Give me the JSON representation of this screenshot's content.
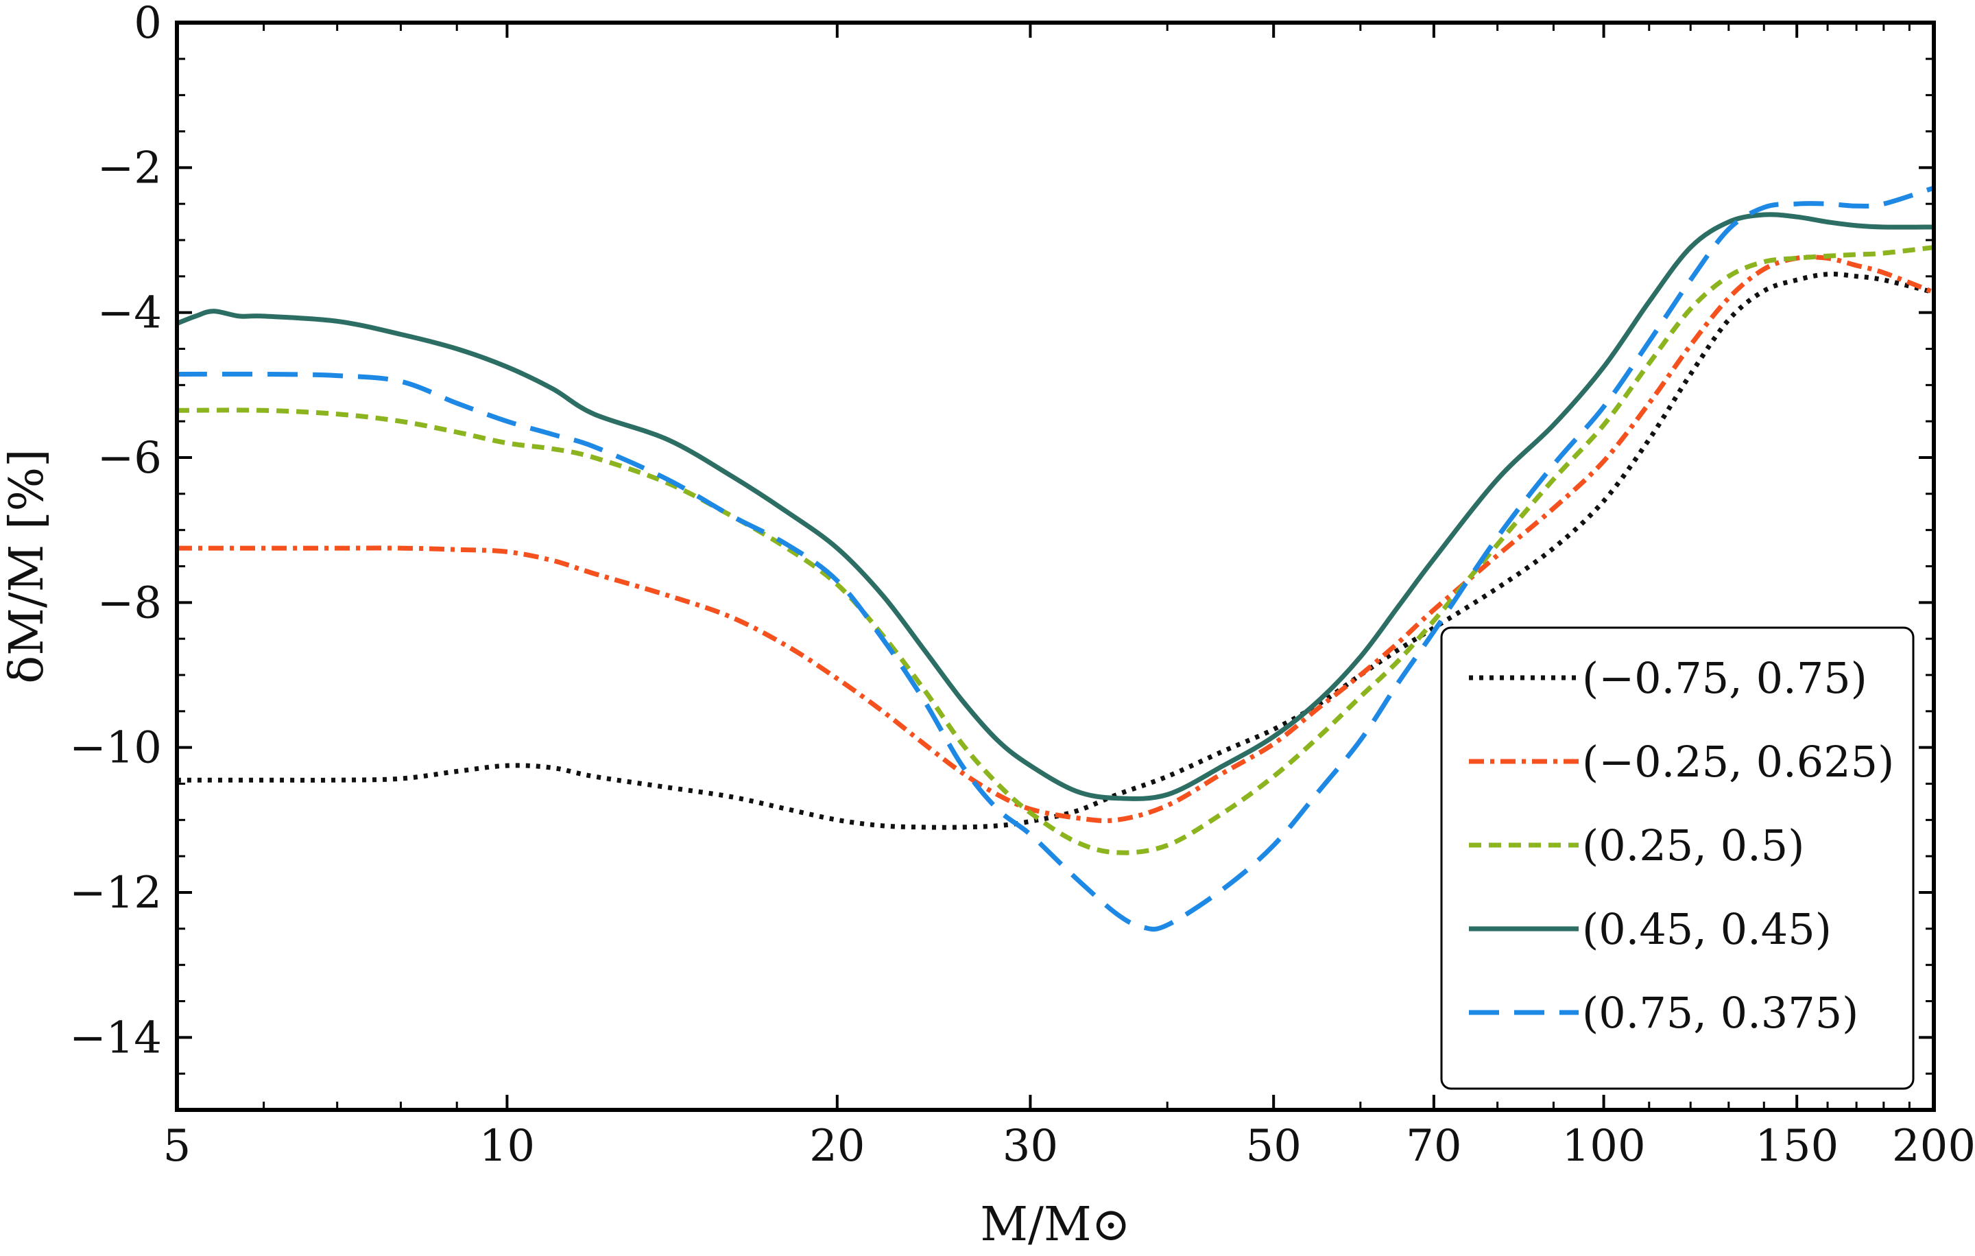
{
  "chart_data": {
    "type": "line",
    "title": "",
    "xlabel": "M/M⊙",
    "ylabel": "δM/M [%]",
    "xscale": "log",
    "xlim": [
      5,
      200
    ],
    "ylim": [
      -15,
      0
    ],
    "xticks": [
      5,
      10,
      20,
      30,
      50,
      70,
      100,
      150,
      200
    ],
    "xtick_labels": [
      "5",
      "10",
      "20",
      "30",
      "50",
      "70",
      "100",
      "150",
      "200"
    ],
    "yticks": [
      0,
      -2,
      -4,
      -6,
      -8,
      -10,
      -12,
      -14
    ],
    "ytick_labels": [
      "0",
      "−2",
      "−4",
      "−6",
      "−8",
      "−10",
      "−12",
      "−14"
    ],
    "legend_position": "bottom-right",
    "grid": false,
    "series": [
      {
        "name": "(−0.75, 0.75)",
        "color": "#111111",
        "dash": "dotted",
        "x": [
          5,
          6,
          7,
          8,
          9,
          10,
          11,
          12,
          14,
          16,
          18,
          20,
          22,
          24,
          26,
          28,
          30,
          33,
          36,
          40,
          45,
          50,
          55,
          60,
          65,
          70,
          80,
          90,
          100,
          110,
          120,
          130,
          140,
          150,
          160,
          170,
          180,
          200
        ],
        "y": [
          -10.45,
          -10.45,
          -10.45,
          -10.43,
          -10.33,
          -10.25,
          -10.28,
          -10.4,
          -10.55,
          -10.68,
          -10.85,
          -11.0,
          -11.08,
          -11.1,
          -11.1,
          -11.08,
          -11.02,
          -10.88,
          -10.65,
          -10.4,
          -10.05,
          -9.75,
          -9.4,
          -9.0,
          -8.65,
          -8.35,
          -7.8,
          -7.25,
          -6.6,
          -5.75,
          -4.85,
          -4.1,
          -3.7,
          -3.55,
          -3.47,
          -3.5,
          -3.55,
          -3.72
        ]
      },
      {
        "name": "(−0.25, 0.625)",
        "color": "#f4511e",
        "dash": "dashdot",
        "x": [
          5,
          6,
          7,
          8,
          9,
          10,
          11,
          12,
          14,
          16,
          18,
          20,
          22,
          24,
          26,
          28,
          30,
          33,
          36,
          40,
          45,
          50,
          55,
          60,
          65,
          70,
          80,
          90,
          100,
          110,
          120,
          130,
          140,
          150,
          160,
          170,
          180,
          200
        ],
        "y": [
          -7.25,
          -7.25,
          -7.25,
          -7.25,
          -7.27,
          -7.3,
          -7.42,
          -7.6,
          -7.9,
          -8.2,
          -8.6,
          -9.05,
          -9.5,
          -9.95,
          -10.35,
          -10.65,
          -10.85,
          -10.97,
          -11.0,
          -10.8,
          -10.35,
          -9.95,
          -9.45,
          -9.0,
          -8.55,
          -8.1,
          -7.35,
          -6.7,
          -6.05,
          -5.25,
          -4.45,
          -3.8,
          -3.4,
          -3.25,
          -3.25,
          -3.35,
          -3.45,
          -3.72
        ]
      },
      {
        "name": "(0.25, 0.5)",
        "color": "#8cb41e",
        "dash": "dashed",
        "x": [
          5,
          6,
          7,
          8,
          9,
          10,
          11,
          12,
          14,
          16,
          18,
          20,
          22,
          24,
          26,
          28,
          30,
          33,
          36,
          40,
          45,
          50,
          55,
          60,
          65,
          70,
          80,
          90,
          100,
          110,
          120,
          130,
          140,
          150,
          160,
          170,
          180,
          200
        ],
        "y": [
          -5.35,
          -5.35,
          -5.4,
          -5.5,
          -5.65,
          -5.8,
          -5.88,
          -6.0,
          -6.35,
          -6.8,
          -7.25,
          -7.75,
          -8.45,
          -9.2,
          -9.95,
          -10.5,
          -10.9,
          -11.3,
          -11.45,
          -11.35,
          -10.9,
          -10.4,
          -9.85,
          -9.3,
          -8.8,
          -8.25,
          -7.2,
          -6.3,
          -5.55,
          -4.7,
          -3.95,
          -3.5,
          -3.3,
          -3.25,
          -3.22,
          -3.2,
          -3.18,
          -3.1
        ]
      },
      {
        "name": "(0.45, 0.45)",
        "color": "#2c6e63",
        "dash": "solid",
        "x": [
          5,
          5.2,
          5.4,
          5.7,
          6,
          7,
          8,
          9,
          10,
          11,
          12,
          14,
          16,
          18,
          20,
          22,
          24,
          26,
          28,
          30,
          33,
          36,
          40,
          45,
          50,
          55,
          60,
          65,
          70,
          80,
          90,
          100,
          110,
          120,
          130,
          140,
          150,
          160,
          170,
          180,
          200
        ],
        "y": [
          -4.15,
          -4.05,
          -3.98,
          -4.05,
          -4.05,
          -4.12,
          -4.3,
          -4.5,
          -4.75,
          -5.05,
          -5.4,
          -5.75,
          -6.25,
          -6.75,
          -7.25,
          -7.9,
          -8.65,
          -9.35,
          -9.9,
          -10.25,
          -10.6,
          -10.7,
          -10.65,
          -10.25,
          -9.85,
          -9.35,
          -8.75,
          -8.05,
          -7.4,
          -6.3,
          -5.55,
          -4.75,
          -3.85,
          -3.1,
          -2.75,
          -2.65,
          -2.68,
          -2.75,
          -2.8,
          -2.82,
          -2.82
        ]
      },
      {
        "name": "(0.75, 0.375)",
        "color": "#1e88e5",
        "dash": "longdash",
        "x": [
          5,
          6,
          7,
          8,
          9,
          10,
          11,
          12,
          14,
          16,
          18,
          20,
          22,
          24,
          26,
          28,
          30,
          33,
          36,
          38,
          40,
          45,
          50,
          55,
          60,
          65,
          70,
          80,
          90,
          100,
          110,
          120,
          130,
          140,
          150,
          160,
          170,
          180,
          200
        ],
        "y": [
          -4.85,
          -4.85,
          -4.87,
          -4.95,
          -5.25,
          -5.5,
          -5.68,
          -5.85,
          -6.3,
          -6.8,
          -7.2,
          -7.7,
          -8.5,
          -9.35,
          -10.25,
          -10.85,
          -11.2,
          -11.8,
          -12.3,
          -12.48,
          -12.45,
          -11.95,
          -11.35,
          -10.6,
          -9.9,
          -9.1,
          -8.4,
          -7.1,
          -6.1,
          -5.3,
          -4.4,
          -3.55,
          -2.85,
          -2.55,
          -2.5,
          -2.5,
          -2.53,
          -2.5,
          -2.28
        ]
      }
    ]
  }
}
